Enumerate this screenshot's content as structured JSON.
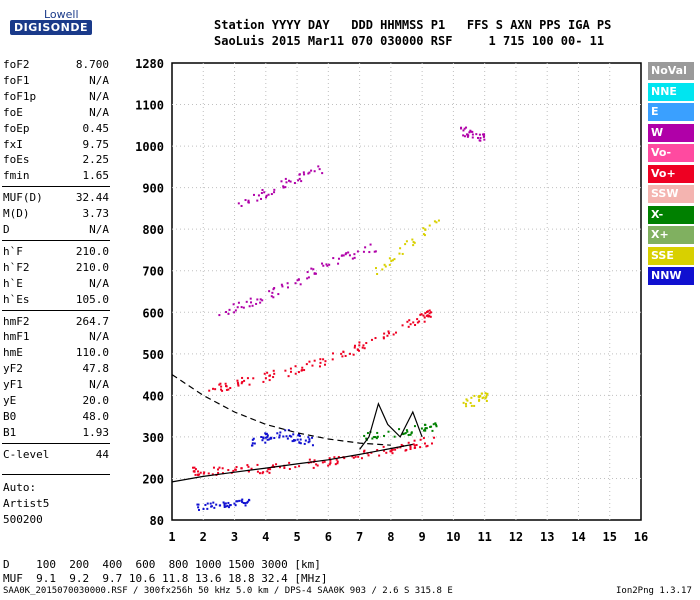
{
  "logo": {
    "top": "Lowell",
    "main": "DIGISONDE"
  },
  "header": {
    "line1": "Station YYYY DAY   DDD HHMMSS P1   FFS S AXN PPS IGA PS",
    "line2": "SaoLuis 2015 Mar11 070 030000 RSF     1 715 100 00- 11"
  },
  "params": [
    {
      "name": "foF2",
      "value": "8.700"
    },
    {
      "name": "foF1",
      "value": "N/A"
    },
    {
      "name": "foF1p",
      "value": "N/A"
    },
    {
      "name": "foE",
      "value": "N/A"
    },
    {
      "name": "foEp",
      "value": "0.45"
    },
    {
      "name": "fxI",
      "value": "9.75"
    },
    {
      "name": "foEs",
      "value": "2.25"
    },
    {
      "name": "fmin",
      "value": "1.65"
    },
    {
      "name": "MUF(D)",
      "value": "32.44"
    },
    {
      "name": "M(D)",
      "value": "3.73"
    },
    {
      "name": "D",
      "value": "N/A"
    },
    {
      "name": "h`F",
      "value": "210.0"
    },
    {
      "name": "h`F2",
      "value": "210.0"
    },
    {
      "name": "h`E",
      "value": "N/A"
    },
    {
      "name": "h`Es",
      "value": "105.0"
    },
    {
      "name": "hmF2",
      "value": "264.7"
    },
    {
      "name": "hmF1",
      "value": "N/A"
    },
    {
      "name": "hmE",
      "value": "110.0"
    },
    {
      "name": "yF2",
      "value": "47.8"
    },
    {
      "name": "yF1",
      "value": "N/A"
    },
    {
      "name": "yE",
      "value": "20.0"
    },
    {
      "name": "B0",
      "value": "48.0"
    },
    {
      "name": "B1",
      "value": "1.93"
    },
    {
      "name": "C-level",
      "value": "44"
    }
  ],
  "auto": {
    "line1": "Auto:",
    "line2": "Artist5",
    "line3": "500200"
  },
  "dtable": {
    "d_line": "D    100  200  400  600  800 1000 1500 3000 [km]",
    "muf_line": "MUF  9.1  9.2  9.7 10.6 11.8 13.6 18.8 32.4 [MHz]"
  },
  "footer": {
    "left": "SAA0K_2015070030000.RSF / 300fx256h 50 kHz 5.0 km / DPS-4 SAA0K 903 / 2.6 S 315.8 E",
    "right": "Ion2Png 1.3.17"
  },
  "legend": [
    {
      "label": "NoVal",
      "color": "#9a9a9a"
    },
    {
      "label": "NNE",
      "color": "#00e5f0"
    },
    {
      "label": "E",
      "color": "#3aa0ff"
    },
    {
      "label": "W",
      "color": "#b000a8"
    },
    {
      "label": "Vo-",
      "color": "#ff4aa0"
    },
    {
      "label": "Vo+",
      "color": "#ee0022"
    },
    {
      "label": "SSW",
      "color": "#f4b4b0"
    },
    {
      "label": "X-",
      "color": "#008000"
    },
    {
      "label": "X+",
      "color": "#80b060"
    },
    {
      "label": "SSE",
      "color": "#d8d000"
    },
    {
      "label": "NNW",
      "color": "#1010d0"
    }
  ],
  "chart_data": {
    "type": "scatter",
    "x_ticks": [
      "1",
      "2",
      "3",
      "4",
      "5",
      "6",
      "7",
      "8",
      "9",
      "10",
      "11",
      "12",
      "13",
      "14",
      "15",
      "16"
    ],
    "y_ticks": [
      "80",
      "200",
      "300",
      "400",
      "500",
      "600",
      "700",
      "800",
      "900",
      "1000",
      "1100",
      "1280"
    ],
    "y_tick_values": [
      80,
      200,
      300,
      400,
      500,
      600,
      700,
      800,
      900,
      1000,
      1100,
      1280
    ],
    "xlim": [
      1,
      16
    ],
    "ylim": [
      80,
      1280
    ],
    "grid": true,
    "traces": [
      {
        "color": "#ee0022",
        "points": [
          [
            1.6,
            218
          ],
          [
            2,
            220
          ],
          [
            3,
            222
          ],
          [
            4,
            226
          ],
          [
            5,
            232
          ],
          [
            6,
            244
          ],
          [
            7,
            258
          ],
          [
            8,
            272
          ],
          [
            8.7,
            284
          ],
          [
            9.3,
            295
          ]
        ]
      },
      {
        "color": "#ee0022",
        "points": [
          [
            2.1,
            415
          ],
          [
            3,
            430
          ],
          [
            4,
            448
          ],
          [
            5,
            465
          ],
          [
            6,
            490
          ],
          [
            7,
            520
          ],
          [
            8,
            555
          ],
          [
            9,
            590
          ],
          [
            9.3,
            600
          ]
        ]
      },
      {
        "color": "#b000a8",
        "points": [
          [
            2.5,
            600
          ],
          [
            3.5,
            625
          ],
          [
            4.5,
            660
          ],
          [
            5.5,
            700
          ],
          [
            6.5,
            735
          ],
          [
            7.5,
            760
          ]
        ]
      },
      {
        "color": "#b000a8",
        "points": [
          [
            3,
            860
          ],
          [
            4,
            890
          ],
          [
            5,
            925
          ],
          [
            5.8,
            950
          ]
        ]
      },
      {
        "color": "#1010d0",
        "points": [
          [
            3.5,
            290
          ],
          [
            4,
            300
          ],
          [
            4.5,
            312
          ],
          [
            5,
            300
          ],
          [
            5.5,
            290
          ]
        ]
      },
      {
        "color": "#008000",
        "points": [
          [
            7,
            300
          ],
          [
            8,
            310
          ],
          [
            9,
            320
          ],
          [
            9.5,
            330
          ]
        ]
      },
      {
        "color": "#d8d000",
        "points": [
          [
            7.5,
            700
          ],
          [
            8.5,
            760
          ],
          [
            9.5,
            830
          ]
        ]
      },
      {
        "color": "#b000a8",
        "points": [
          [
            10.2,
            1040
          ],
          [
            10.6,
            1030
          ],
          [
            11,
            1020
          ]
        ]
      },
      {
        "color": "#d8d000",
        "points": [
          [
            10.3,
            380
          ],
          [
            10.8,
            395
          ],
          [
            11.1,
            400
          ]
        ]
      },
      {
        "color": "#1010d0",
        "points": [
          [
            1.8,
            120
          ],
          [
            2.5,
            125
          ],
          [
            3,
            130
          ],
          [
            3.5,
            135
          ]
        ]
      }
    ],
    "profile_line": [
      [
        1,
        190
      ],
      [
        2,
        205
      ],
      [
        3,
        215
      ],
      [
        4,
        225
      ],
      [
        5,
        235
      ],
      [
        6,
        245
      ],
      [
        7,
        258
      ],
      [
        8,
        272
      ],
      [
        8.7,
        282
      ]
    ],
    "dashed_line": [
      [
        1,
        450
      ],
      [
        2,
        400
      ],
      [
        3,
        360
      ],
      [
        4,
        330
      ],
      [
        5,
        310
      ],
      [
        6,
        295
      ],
      [
        7,
        285
      ],
      [
        8,
        280
      ]
    ],
    "peak_line": [
      [
        7,
        270
      ],
      [
        7.3,
        300
      ],
      [
        7.6,
        380
      ],
      [
        7.9,
        330
      ],
      [
        8.3,
        300
      ],
      [
        8.7,
        360
      ],
      [
        9.0,
        300
      ]
    ]
  }
}
